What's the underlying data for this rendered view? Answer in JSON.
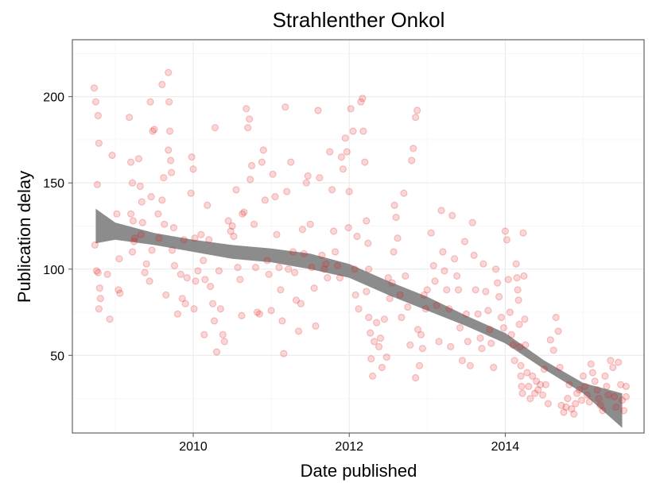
{
  "chart_data": {
    "type": "scatter",
    "title": "Strahlenther Onkol",
    "xlabel": "Date published",
    "ylabel": "Publication delay",
    "x_ticks": [
      2010,
      2012,
      2014
    ],
    "y_ticks": [
      50,
      100,
      150,
      200
    ],
    "xlim": [
      2008.45,
      2015.78
    ],
    "ylim": [
      5,
      233
    ],
    "grid": true,
    "point_color": "#e31a1c",
    "point_opacity": 0.18,
    "smooth_color": "#808080",
    "smooth_band": {
      "x": [
        2008.75,
        2009.0,
        2009.5,
        2010.0,
        2010.5,
        2011.0,
        2011.5,
        2012.0,
        2012.5,
        2013.0,
        2013.5,
        2014.0,
        2014.5,
        2015.0,
        2015.5
      ],
      "lower": [
        115,
        117,
        114,
        110,
        106,
        104,
        100,
        95,
        85,
        76,
        67,
        57,
        42,
        28,
        8
      ],
      "upper": [
        135,
        127,
        121,
        117,
        114,
        112,
        109,
        103,
        93,
        84,
        73,
        63,
        47,
        34,
        28
      ]
    },
    "points": [
      [
        2008.73,
        205
      ],
      [
        2008.75,
        197
      ],
      [
        2008.78,
        189
      ],
      [
        2008.79,
        173
      ],
      [
        2008.77,
        149
      ],
      [
        2008.74,
        114
      ],
      [
        2008.76,
        99
      ],
      [
        2008.78,
        98
      ],
      [
        2008.8,
        89
      ],
      [
        2008.81,
        83
      ],
      [
        2008.79,
        77
      ],
      [
        2008.9,
        97
      ],
      [
        2008.93,
        71
      ],
      [
        2008.96,
        166
      ],
      [
        2009.02,
        132
      ],
      [
        2009.05,
        106
      ],
      [
        2009.04,
        88
      ],
      [
        2009.06,
        86
      ],
      [
        2009.18,
        188
      ],
      [
        2009.2,
        162
      ],
      [
        2009.22,
        150
      ],
      [
        2009.2,
        132
      ],
      [
        2009.23,
        128
      ],
      [
        2009.25,
        118
      ],
      [
        2009.24,
        116
      ],
      [
        2009.22,
        110
      ],
      [
        2009.3,
        164
      ],
      [
        2009.32,
        148
      ],
      [
        2009.34,
        139
      ],
      [
        2009.35,
        127
      ],
      [
        2009.33,
        120
      ],
      [
        2009.38,
        98
      ],
      [
        2009.4,
        103
      ],
      [
        2009.45,
        197
      ],
      [
        2009.48,
        180
      ],
      [
        2009.5,
        181
      ],
      [
        2009.46,
        142
      ],
      [
        2009.44,
        93
      ],
      [
        2009.47,
        111
      ],
      [
        2009.55,
        132
      ],
      [
        2009.56,
        118
      ],
      [
        2009.6,
        207
      ],
      [
        2009.62,
        153
      ],
      [
        2009.6,
        140
      ],
      [
        2009.63,
        126
      ],
      [
        2009.65,
        85
      ],
      [
        2009.68,
        214
      ],
      [
        2009.69,
        197
      ],
      [
        2009.7,
        180
      ],
      [
        2009.68,
        169
      ],
      [
        2009.71,
        163
      ],
      [
        2009.72,
        156
      ],
      [
        2009.75,
        124
      ],
      [
        2009.73,
        111
      ],
      [
        2009.76,
        102
      ],
      [
        2009.8,
        74
      ],
      [
        2009.84,
        97
      ],
      [
        2009.86,
        83
      ],
      [
        2009.88,
        117
      ],
      [
        2009.9,
        80
      ],
      [
        2009.92,
        95
      ],
      [
        2009.97,
        144
      ],
      [
        2009.98,
        165
      ],
      [
        2010.0,
        158
      ],
      [
        2010.02,
        118
      ],
      [
        2010.03,
        93
      ],
      [
        2010.01,
        77
      ],
      [
        2010.06,
        99
      ],
      [
        2010.1,
        120
      ],
      [
        2010.13,
        105
      ],
      [
        2010.15,
        94
      ],
      [
        2010.14,
        62
      ],
      [
        2010.18,
        137
      ],
      [
        2010.2,
        117
      ],
      [
        2010.22,
        90
      ],
      [
        2010.25,
        80
      ],
      [
        2010.27,
        70
      ],
      [
        2010.3,
        52
      ],
      [
        2010.28,
        182
      ],
      [
        2010.33,
        99
      ],
      [
        2010.35,
        77
      ],
      [
        2010.38,
        62
      ],
      [
        2010.4,
        58
      ],
      [
        2010.45,
        128
      ],
      [
        2010.48,
        122
      ],
      [
        2010.5,
        125
      ],
      [
        2010.52,
        119
      ],
      [
        2010.55,
        146
      ],
      [
        2010.57,
        101
      ],
      [
        2010.6,
        94
      ],
      [
        2010.62,
        73
      ],
      [
        2010.63,
        132
      ],
      [
        2010.65,
        133
      ],
      [
        2010.68,
        193
      ],
      [
        2010.7,
        182
      ],
      [
        2010.72,
        187
      ],
      [
        2010.75,
        160
      ],
      [
        2010.73,
        152
      ],
      [
        2010.78,
        126
      ],
      [
        2010.8,
        101
      ],
      [
        2010.82,
        75
      ],
      [
        2010.85,
        74
      ],
      [
        2010.88,
        162
      ],
      [
        2010.9,
        169
      ],
      [
        2010.92,
        140
      ],
      [
        2010.95,
        105
      ],
      [
        2010.97,
        97
      ],
      [
        2011.0,
        76
      ],
      [
        2011.02,
        155
      ],
      [
        2011.05,
        142
      ],
      [
        2011.07,
        120
      ],
      [
        2011.1,
        101
      ],
      [
        2011.12,
        88
      ],
      [
        2011.14,
        70
      ],
      [
        2011.16,
        51
      ],
      [
        2011.18,
        194
      ],
      [
        2011.2,
        145
      ],
      [
        2011.22,
        100
      ],
      [
        2011.25,
        162
      ],
      [
        2011.28,
        110
      ],
      [
        2011.3,
        98
      ],
      [
        2011.32,
        82
      ],
      [
        2011.35,
        64
      ],
      [
        2011.38,
        80
      ],
      [
        2011.4,
        123
      ],
      [
        2011.42,
        109
      ],
      [
        2011.45,
        150
      ],
      [
        2011.47,
        154
      ],
      [
        2011.5,
        126
      ],
      [
        2011.52,
        101
      ],
      [
        2011.55,
        89
      ],
      [
        2011.57,
        67
      ],
      [
        2011.6,
        192
      ],
      [
        2011.62,
        153
      ],
      [
        2011.65,
        108
      ],
      [
        2011.68,
        100
      ],
      [
        2011.7,
        103
      ],
      [
        2011.72,
        95
      ],
      [
        2011.75,
        168
      ],
      [
        2011.78,
        146
      ],
      [
        2011.8,
        122
      ],
      [
        2011.82,
        110
      ],
      [
        2011.85,
        102
      ],
      [
        2011.88,
        95
      ],
      [
        2011.9,
        165
      ],
      [
        2011.92,
        158
      ],
      [
        2011.95,
        176
      ],
      [
        2011.97,
        168
      ],
      [
        2011.99,
        124
      ],
      [
        2012.0,
        145
      ],
      [
        2012.02,
        193
      ],
      [
        2012.05,
        180
      ],
      [
        2012.07,
        100
      ],
      [
        2012.08,
        85
      ],
      [
        2012.1,
        119
      ],
      [
        2012.12,
        77
      ],
      [
        2012.15,
        197
      ],
      [
        2012.17,
        199
      ],
      [
        2012.18,
        180
      ],
      [
        2012.2,
        162
      ],
      [
        2012.22,
        128
      ],
      [
        2012.24,
        115
      ],
      [
        2012.25,
        100
      ],
      [
        2012.22,
        87
      ],
      [
        2012.25,
        72
      ],
      [
        2012.27,
        63
      ],
      [
        2012.28,
        48
      ],
      [
        2012.3,
        38
      ],
      [
        2012.32,
        58
      ],
      [
        2012.35,
        69
      ],
      [
        2012.38,
        55
      ],
      [
        2012.4,
        60
      ],
      [
        2012.42,
        43
      ],
      [
        2012.45,
        71
      ],
      [
        2012.48,
        49
      ],
      [
        2012.5,
        95
      ],
      [
        2012.52,
        83
      ],
      [
        2012.55,
        92
      ],
      [
        2012.57,
        110
      ],
      [
        2012.58,
        137
      ],
      [
        2012.6,
        130
      ],
      [
        2012.62,
        118
      ],
      [
        2012.65,
        85
      ],
      [
        2012.67,
        72
      ],
      [
        2012.7,
        144
      ],
      [
        2012.72,
        96
      ],
      [
        2012.75,
        78
      ],
      [
        2012.78,
        56
      ],
      [
        2012.8,
        163
      ],
      [
        2012.82,
        170
      ],
      [
        2012.85,
        188
      ],
      [
        2012.87,
        192
      ],
      [
        2012.85,
        37
      ],
      [
        2012.88,
        65
      ],
      [
        2012.9,
        44
      ],
      [
        2012.92,
        62
      ],
      [
        2012.94,
        54
      ],
      [
        2012.96,
        85
      ],
      [
        2012.98,
        77
      ],
      [
        2013.0,
        88
      ],
      [
        2013.05,
        121
      ],
      [
        2013.08,
        102
      ],
      [
        2013.1,
        93
      ],
      [
        2013.12,
        79
      ],
      [
        2013.15,
        58
      ],
      [
        2013.18,
        134
      ],
      [
        2013.2,
        110
      ],
      [
        2013.22,
        99
      ],
      [
        2013.25,
        88
      ],
      [
        2013.28,
        77
      ],
      [
        2013.3,
        55
      ],
      [
        2013.32,
        131
      ],
      [
        2013.35,
        106
      ],
      [
        2013.38,
        96
      ],
      [
        2013.4,
        88
      ],
      [
        2013.42,
        66
      ],
      [
        2013.45,
        47
      ],
      [
        2013.48,
        116
      ],
      [
        2013.5,
        74
      ],
      [
        2013.52,
        58
      ],
      [
        2013.55,
        44
      ],
      [
        2013.58,
        127
      ],
      [
        2013.6,
        108
      ],
      [
        2013.62,
        88
      ],
      [
        2013.65,
        74
      ],
      [
        2013.68,
        60
      ],
      [
        2013.7,
        54
      ],
      [
        2013.72,
        103
      ],
      [
        2013.75,
        87
      ],
      [
        2013.78,
        76
      ],
      [
        2013.8,
        65
      ],
      [
        2013.82,
        57
      ],
      [
        2013.85,
        43
      ],
      [
        2013.88,
        100
      ],
      [
        2013.9,
        92
      ],
      [
        2013.92,
        84
      ],
      [
        2013.95,
        72
      ],
      [
        2013.98,
        66
      ],
      [
        2014.0,
        122
      ],
      [
        2014.02,
        117
      ],
      [
        2014.04,
        94
      ],
      [
        2014.06,
        75
      ],
      [
        2014.08,
        62
      ],
      [
        2014.1,
        56
      ],
      [
        2014.12,
        47
      ],
      [
        2014.14,
        103
      ],
      [
        2014.15,
        95
      ],
      [
        2014.16,
        88
      ],
      [
        2014.17,
        82
      ],
      [
        2014.18,
        68
      ],
      [
        2014.19,
        55
      ],
      [
        2014.2,
        44
      ],
      [
        2014.2,
        38
      ],
      [
        2014.21,
        32
      ],
      [
        2014.22,
        28
      ],
      [
        2014.23,
        121
      ],
      [
        2014.24,
        96
      ],
      [
        2014.25,
        71
      ],
      [
        2014.26,
        56
      ],
      [
        2014.28,
        40
      ],
      [
        2014.3,
        32
      ],
      [
        2014.32,
        25
      ],
      [
        2014.35,
        38
      ],
      [
        2014.38,
        28
      ],
      [
        2014.4,
        35
      ],
      [
        2014.42,
        30
      ],
      [
        2014.45,
        33
      ],
      [
        2014.48,
        27
      ],
      [
        2014.5,
        42
      ],
      [
        2014.52,
        33
      ],
      [
        2014.55,
        22
      ],
      [
        2014.58,
        59
      ],
      [
        2014.62,
        53
      ],
      [
        2014.65,
        72
      ],
      [
        2014.68,
        64
      ],
      [
        2014.7,
        43
      ],
      [
        2014.72,
        21
      ],
      [
        2014.75,
        17
      ],
      [
        2014.78,
        20
      ],
      [
        2014.8,
        25
      ],
      [
        2014.82,
        33
      ],
      [
        2014.85,
        19
      ],
      [
        2014.88,
        16
      ],
      [
        2014.9,
        22
      ],
      [
        2014.92,
        28
      ],
      [
        2014.95,
        30
      ],
      [
        2014.98,
        24
      ],
      [
        2015.0,
        38
      ],
      [
        2015.02,
        32
      ],
      [
        2015.05,
        27
      ],
      [
        2015.08,
        23
      ],
      [
        2015.1,
        45
      ],
      [
        2015.12,
        40
      ],
      [
        2015.15,
        35
      ],
      [
        2015.18,
        30
      ],
      [
        2015.2,
        25
      ],
      [
        2015.22,
        21
      ],
      [
        2015.25,
        18
      ],
      [
        2015.28,
        38
      ],
      [
        2015.3,
        32
      ],
      [
        2015.32,
        27
      ],
      [
        2015.35,
        47
      ],
      [
        2015.38,
        43
      ],
      [
        2015.4,
        26
      ],
      [
        2015.42,
        20
      ],
      [
        2015.45,
        46
      ],
      [
        2015.48,
        33
      ],
      [
        2015.5,
        24
      ],
      [
        2015.52,
        18
      ],
      [
        2015.55,
        32
      ],
      [
        2015.55,
        26
      ]
    ]
  }
}
